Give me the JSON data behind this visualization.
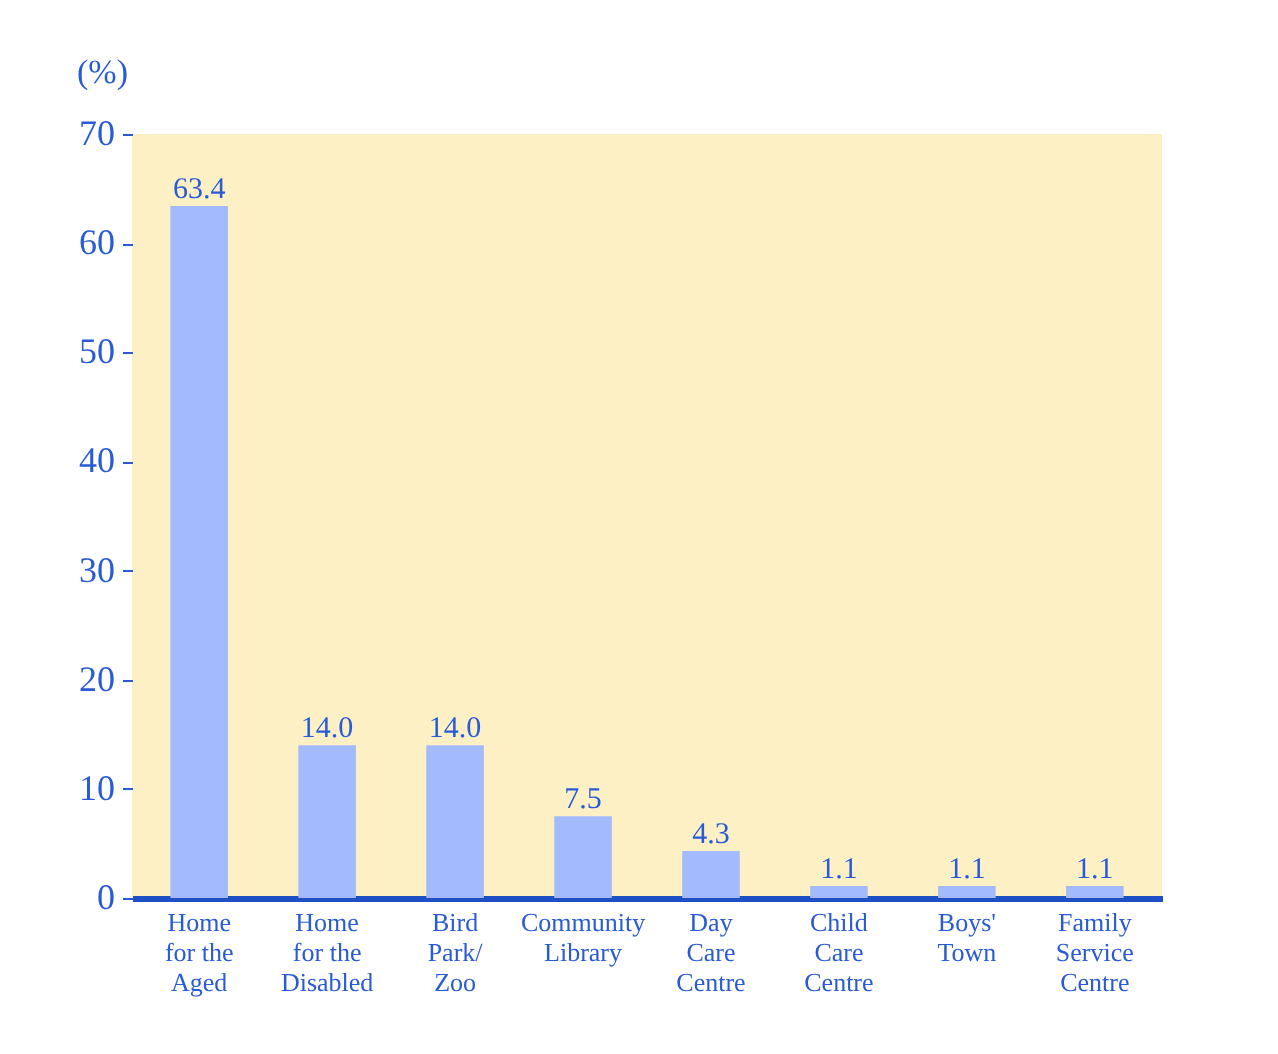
{
  "chart_data": {
    "type": "bar",
    "ylabel": "(%)",
    "categories": [
      "Home\nfor the\nAged",
      "Home\nfor the\nDisabled",
      "Bird\nPark/\nZoo",
      "Community\nLibrary",
      "Day\nCare\nCentre",
      "Child\nCare\nCentre",
      "Boys'\nTown",
      "Family\nService\nCentre"
    ],
    "values": [
      63.4,
      14.0,
      14.0,
      7.5,
      4.3,
      1.1,
      1.1,
      1.1
    ],
    "value_labels": [
      "63.4",
      "14.0",
      "14.0",
      "7.5",
      "4.3",
      "1.1",
      "1.1",
      "1.1"
    ],
    "color": "#a3bbfc",
    "ylim": [
      0,
      70
    ],
    "yticks": [
      0,
      10,
      20,
      30,
      40,
      50,
      60,
      70
    ],
    "grid": false
  }
}
